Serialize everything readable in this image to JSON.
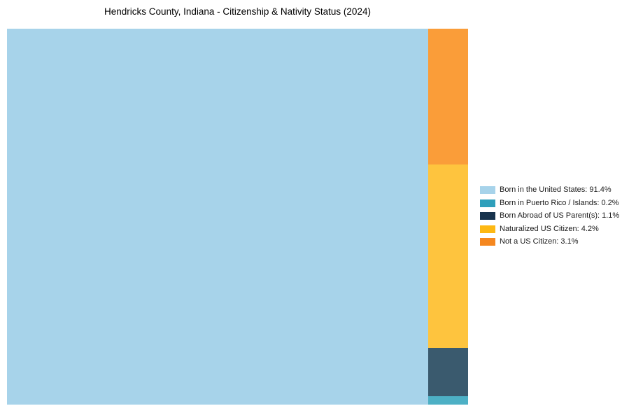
{
  "title": "Hendricks County, Indiana - Citizenship & Nativity Status (2024)",
  "background_color": "#ffffff",
  "chart_data": {
    "type": "treemap",
    "title": "Hendricks County, Indiana - Citizenship & Nativity Status (2024)",
    "unit": "%",
    "legend_position": "right",
    "items": [
      {
        "category": "Born in the United States",
        "value": 91.4,
        "legend_label": "Born in the United States: 91.4%",
        "chart_color": "#a7d3ea",
        "legend_color": "#a7d3ea"
      },
      {
        "category": "Born in Puerto Rico / Islands",
        "value": 0.2,
        "legend_label": "Born in Puerto Rico / Islands: 0.2%",
        "chart_color": "#4db0c5",
        "legend_color": "#2e9fbb"
      },
      {
        "category": "Born Abroad of US Parent(s)",
        "value": 1.1,
        "legend_label": "Born Abroad of US Parent(s): 1.1%",
        "chart_color": "#3a5a6e",
        "legend_color": "#17334d"
      },
      {
        "category": "Naturalized US Citizen",
        "value": 4.2,
        "legend_label": "Naturalized US Citizen: 4.2%",
        "chart_color": "#fec43e",
        "legend_color": "#fdb813"
      },
      {
        "category": "Not a US Citizen",
        "value": 3.1,
        "legend_label": "Not a US Citizen: 3.1%",
        "chart_color": "#fa9d39",
        "legend_color": "#f5871f"
      }
    ],
    "layout_order": {
      "left_full_height_block": 0,
      "right_column_top_to_bottom": [
        4,
        3,
        2,
        1
      ]
    }
  }
}
